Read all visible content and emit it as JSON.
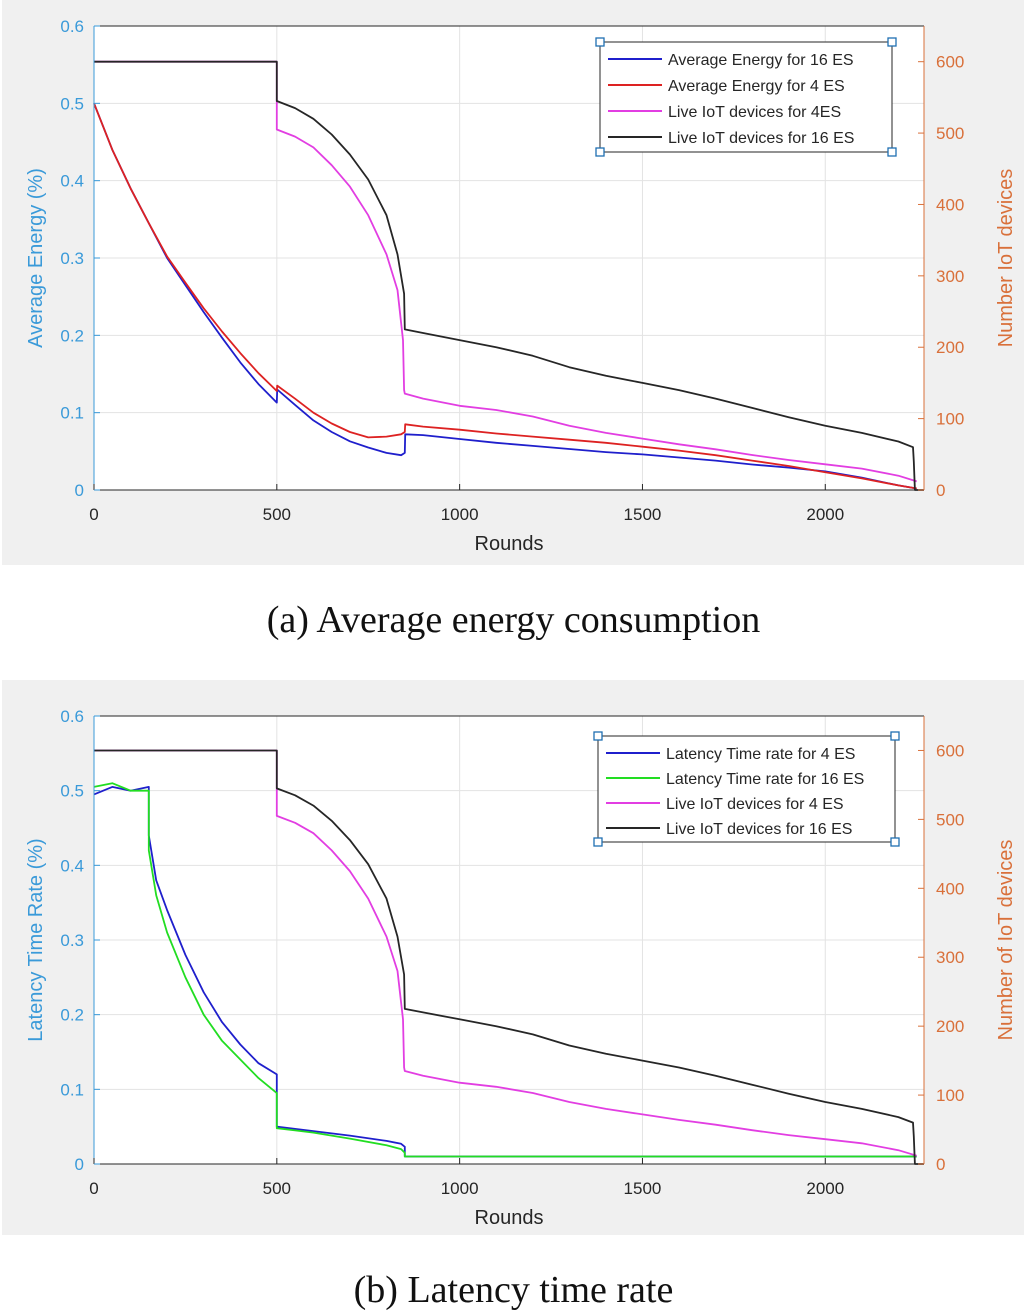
{
  "chart_data": [
    {
      "id": "a",
      "type": "line",
      "caption": "(a)  Average energy consumption",
      "xlabel": "Rounds",
      "ylabel_left": "Average Energy (%)",
      "ylabel_right": "Number IoT devices",
      "xlim": [
        0,
        2270
      ],
      "ylim_left": [
        0,
        0.6
      ],
      "ylim_right": [
        0,
        650
      ],
      "xticks": [
        0,
        500,
        1000,
        1500,
        2000
      ],
      "yticks_left": [
        0,
        0.1,
        0.2,
        0.3,
        0.4,
        0.5,
        0.6
      ],
      "yticks_right": [
        0,
        100,
        200,
        300,
        400,
        500,
        600
      ],
      "ytick_labels_left": [
        "0",
        "0.1",
        "0.2",
        "0.3",
        "0.4",
        "0.5",
        "0.6"
      ],
      "colors": {
        "left_axis": "#3a9ad9",
        "right_axis": "#d9703a"
      },
      "series": [
        {
          "name": "Average Energy  for 16 ES",
          "axis": "left",
          "color": "#1f1fcc",
          "x": [
            0,
            50,
            100,
            150,
            200,
            250,
            300,
            350,
            400,
            450,
            500,
            501,
            550,
            600,
            650,
            700,
            750,
            800,
            840,
            850,
            851,
            900,
            1000,
            1100,
            1200,
            1300,
            1400,
            1500,
            1600,
            1700,
            1800,
            1900,
            2000,
            2100,
            2200,
            2250
          ],
          "y": [
            0.5,
            0.44,
            0.39,
            0.345,
            0.3,
            0.265,
            0.23,
            0.197,
            0.165,
            0.137,
            0.113,
            0.13,
            0.11,
            0.09,
            0.075,
            0.063,
            0.055,
            0.048,
            0.045,
            0.048,
            0.072,
            0.071,
            0.066,
            0.061,
            0.057,
            0.053,
            0.049,
            0.046,
            0.042,
            0.038,
            0.033,
            0.029,
            0.024,
            0.016,
            0.006,
            0.002
          ]
        },
        {
          "name": "Average Energy for 4 ES",
          "axis": "left",
          "color": "#dd2222",
          "x": [
            0,
            50,
            100,
            150,
            200,
            250,
            300,
            350,
            400,
            450,
            500,
            501,
            550,
            600,
            650,
            700,
            750,
            800,
            840,
            850,
            851,
            900,
            1000,
            1100,
            1200,
            1300,
            1400,
            1500,
            1600,
            1700,
            1800,
            1900,
            2000,
            2100,
            2200,
            2250
          ],
          "y": [
            0.5,
            0.44,
            0.39,
            0.345,
            0.302,
            0.268,
            0.235,
            0.205,
            0.177,
            0.151,
            0.128,
            0.135,
            0.118,
            0.1,
            0.086,
            0.075,
            0.068,
            0.069,
            0.072,
            0.075,
            0.085,
            0.082,
            0.078,
            0.073,
            0.069,
            0.065,
            0.061,
            0.056,
            0.051,
            0.045,
            0.038,
            0.031,
            0.023,
            0.015,
            0.006,
            0.002
          ]
        },
        {
          "name": "Live IoT devices for 4ES",
          "axis": "right",
          "color": "#e23ee2",
          "x": [
            0,
            500,
            500,
            550,
            600,
            650,
            700,
            750,
            800,
            830,
            845,
            848,
            850,
            900,
            1000,
            1100,
            1200,
            1300,
            1400,
            1500,
            1600,
            1700,
            1800,
            1900,
            2000,
            2100,
            2200,
            2250
          ],
          "y": [
            600,
            600,
            505,
            495,
            480,
            455,
            425,
            385,
            330,
            280,
            210,
            140,
            135,
            128,
            118,
            112,
            103,
            90,
            80,
            72,
            64,
            57,
            49,
            42,
            36,
            30,
            20,
            12
          ]
        },
        {
          "name": "Live IoT devices for 16 ES",
          "axis": "right",
          "color": "#262626",
          "x": [
            0,
            500,
            500,
            550,
            600,
            650,
            700,
            750,
            800,
            830,
            848,
            850,
            900,
            1000,
            1100,
            1200,
            1300,
            1400,
            1500,
            1600,
            1700,
            1800,
            1900,
            2000,
            2100,
            2200,
            2240,
            2242,
            2245,
            2270
          ],
          "y": [
            600,
            600,
            545,
            535,
            520,
            498,
            470,
            435,
            385,
            330,
            275,
            225,
            220,
            210,
            200,
            188,
            172,
            160,
            150,
            140,
            128,
            115,
            102,
            90,
            80,
            68,
            60,
            40,
            0,
            0
          ]
        }
      ]
    },
    {
      "id": "b",
      "type": "line",
      "caption": "(b)  Latency time rate",
      "xlabel": "Rounds",
      "ylabel_left": "Latency Time Rate (%)",
      "ylabel_right": "Number of IoT devices",
      "xlim": [
        0,
        2270
      ],
      "ylim_left": [
        0,
        0.6
      ],
      "ylim_right": [
        0,
        650
      ],
      "xticks": [
        0,
        500,
        1000,
        1500,
        2000
      ],
      "yticks_left": [
        0,
        0.1,
        0.2,
        0.3,
        0.4,
        0.5,
        0.6
      ],
      "yticks_right": [
        0,
        100,
        200,
        300,
        400,
        500,
        600
      ],
      "ytick_labels_left": [
        "0",
        "0.1",
        "0.2",
        "0.3",
        "0.4",
        "0.5",
        "0.6"
      ],
      "colors": {
        "left_axis": "#3a9ad9",
        "right_axis": "#d9703a"
      },
      "series": [
        {
          "name": "Latency Time rate for 4 ES",
          "axis": "left",
          "color": "#1f1fcc",
          "x": [
            0,
            50,
            100,
            150,
            150,
            170,
            200,
            250,
            300,
            350,
            400,
            450,
            500,
            500,
            550,
            600,
            700,
            800,
            840,
            850,
            850,
            900,
            1000,
            1500,
            2000,
            2250
          ],
          "y": [
            0.495,
            0.505,
            0.5,
            0.505,
            0.44,
            0.38,
            0.34,
            0.28,
            0.23,
            0.19,
            0.16,
            0.135,
            0.12,
            0.05,
            0.047,
            0.044,
            0.038,
            0.031,
            0.027,
            0.023,
            0.01,
            0.01,
            0.01,
            0.01,
            0.01,
            0.01
          ]
        },
        {
          "name": "Latency Time rate for 16 ES",
          "axis": "left",
          "color": "#22dd22",
          "x": [
            0,
            50,
            100,
            150,
            150,
            170,
            200,
            250,
            300,
            350,
            400,
            450,
            500,
            500,
            550,
            600,
            700,
            800,
            840,
            850,
            850,
            900,
            1000,
            1500,
            2000,
            2250
          ],
          "y": [
            0.505,
            0.51,
            0.5,
            0.5,
            0.42,
            0.36,
            0.31,
            0.25,
            0.2,
            0.165,
            0.14,
            0.115,
            0.095,
            0.048,
            0.045,
            0.042,
            0.034,
            0.025,
            0.02,
            0.015,
            0.01,
            0.01,
            0.01,
            0.01,
            0.01,
            0.01
          ]
        },
        {
          "name": "Live IoT devices for 4 ES",
          "axis": "right",
          "color": "#e23ee2",
          "x": [
            0,
            500,
            500,
            550,
            600,
            650,
            700,
            750,
            800,
            830,
            845,
            848,
            850,
            900,
            1000,
            1100,
            1200,
            1300,
            1400,
            1500,
            1600,
            1700,
            1800,
            1900,
            2000,
            2100,
            2200,
            2250
          ],
          "y": [
            600,
            600,
            505,
            495,
            480,
            455,
            425,
            385,
            330,
            280,
            210,
            140,
            135,
            128,
            118,
            112,
            103,
            90,
            80,
            72,
            64,
            57,
            49,
            42,
            36,
            30,
            20,
            12
          ]
        },
        {
          "name": "Live IoT devices for 16 ES",
          "axis": "right",
          "color": "#262626",
          "x": [
            0,
            500,
            500,
            550,
            600,
            650,
            700,
            750,
            800,
            830,
            848,
            850,
            900,
            1000,
            1100,
            1200,
            1300,
            1400,
            1500,
            1600,
            1700,
            1800,
            1900,
            2000,
            2100,
            2200,
            2240,
            2242,
            2245,
            2270
          ],
          "y": [
            600,
            600,
            545,
            535,
            520,
            498,
            470,
            435,
            385,
            330,
            275,
            225,
            220,
            210,
            200,
            188,
            172,
            160,
            150,
            140,
            128,
            115,
            102,
            90,
            80,
            68,
            60,
            40,
            0,
            0
          ]
        }
      ]
    }
  ]
}
